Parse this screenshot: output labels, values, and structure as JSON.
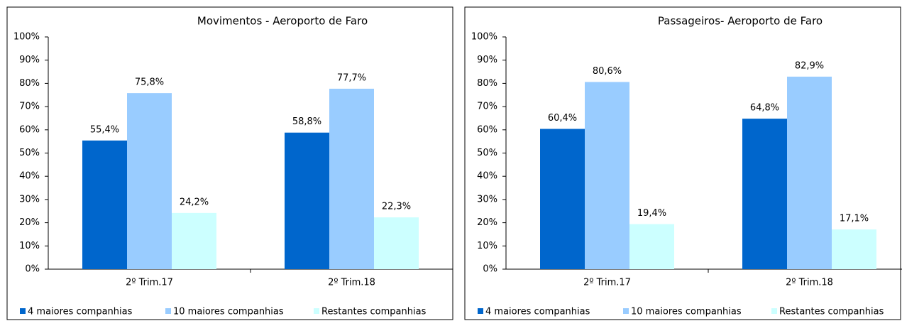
{
  "chart_data": [
    {
      "type": "bar",
      "title": "Movimentos - Aeroporto de Faro",
      "categories": [
        "2º Trim.17",
        "2º Trim.18"
      ],
      "series": [
        {
          "name": "4 maiores companhias",
          "color": "#0066cc",
          "values": [
            55.4,
            58.8
          ],
          "value_labels": [
            "55,4%",
            "58,8%"
          ]
        },
        {
          "name": "10 maiores companhias",
          "color": "#99ccff",
          "values": [
            75.8,
            77.7
          ],
          "value_labels": [
            "75,8%",
            "77,7%"
          ]
        },
        {
          "name": "Restantes companhias",
          "color": "#ccffff",
          "values": [
            24.2,
            22.3
          ],
          "value_labels": [
            "24,2%",
            "22,3%"
          ]
        }
      ],
      "ylim": [
        0,
        100
      ],
      "yticks": [
        {
          "value": 0,
          "label": "0%"
        },
        {
          "value": 10,
          "label": "10%"
        },
        {
          "value": 20,
          "label": "20%"
        },
        {
          "value": 30,
          "label": "30%"
        },
        {
          "value": 40,
          "label": "40%"
        },
        {
          "value": 50,
          "label": "50%"
        },
        {
          "value": 60,
          "label": "60%"
        },
        {
          "value": 70,
          "label": "70%"
        },
        {
          "value": 80,
          "label": "80%"
        },
        {
          "value": 90,
          "label": "90%"
        },
        {
          "value": 100,
          "label": "100%"
        }
      ],
      "grid": false,
      "legend": "bottom"
    },
    {
      "type": "bar",
      "title": "Passageiros- Aeroporto de Faro",
      "categories": [
        "2º Trim.17",
        "2º Trim.18"
      ],
      "series": [
        {
          "name": "4 maiores companhias",
          "color": "#0066cc",
          "values": [
            60.4,
            64.8
          ],
          "value_labels": [
            "60,4%",
            "64,8%"
          ]
        },
        {
          "name": "10 maiores companhias",
          "color": "#99ccff",
          "values": [
            80.6,
            82.9
          ],
          "value_labels": [
            "80,6%",
            "82,9%"
          ]
        },
        {
          "name": "Restantes companhias",
          "color": "#ccffff",
          "values": [
            19.4,
            17.1
          ],
          "value_labels": [
            "19,4%",
            "17,1%"
          ]
        }
      ],
      "ylim": [
        0,
        100
      ],
      "yticks": [
        {
          "value": 0,
          "label": "0%"
        },
        {
          "value": 10,
          "label": "10%"
        },
        {
          "value": 20,
          "label": "20%"
        },
        {
          "value": 30,
          "label": "30%"
        },
        {
          "value": 40,
          "label": "40%"
        },
        {
          "value": 50,
          "label": "50%"
        },
        {
          "value": 60,
          "label": "60%"
        },
        {
          "value": 70,
          "label": "70%"
        },
        {
          "value": 80,
          "label": "80%"
        },
        {
          "value": 90,
          "label": "90%"
        },
        {
          "value": 100,
          "label": "100%"
        }
      ],
      "grid": false,
      "legend": "bottom"
    }
  ]
}
